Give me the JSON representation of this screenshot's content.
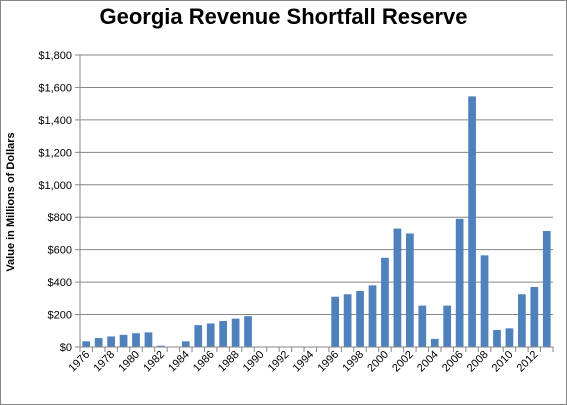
{
  "chart_data": {
    "type": "bar",
    "title": "Georgia Revenue Shortfall Reserve",
    "xlabel": "",
    "ylabel": "Value in Millions of Dollars",
    "ylim": [
      0,
      1800
    ],
    "ytick_step": 200,
    "ytick_labels": [
      "$0",
      "$200",
      "$400",
      "$600",
      "$800",
      "$1,000",
      "$1,200",
      "$1,400",
      "$1,600",
      "$1,800"
    ],
    "categories": [
      "1976",
      "1977",
      "1978",
      "1979",
      "1980",
      "1981",
      "1982",
      "1983",
      "1984",
      "1985",
      "1986",
      "1987",
      "1988",
      "1989",
      "1990",
      "1991",
      "1992",
      "1993",
      "1994",
      "1995",
      "1996",
      "1997",
      "1998",
      "1999",
      "2000",
      "2001",
      "2002",
      "2003",
      "2004",
      "2005",
      "2006",
      "2007",
      "2008",
      "2009",
      "2010",
      "2011",
      "2012",
      "2013"
    ],
    "xtick_labels": [
      "1976",
      "1978",
      "1980",
      "1982",
      "1984",
      "1986",
      "1988",
      "1990",
      "1992",
      "1994",
      "1996",
      "1998",
      "2000",
      "2002",
      "2004",
      "2006",
      "2008",
      "2010",
      "2012"
    ],
    "values": [
      35,
      55,
      65,
      75,
      85,
      90,
      8,
      0,
      35,
      135,
      145,
      160,
      175,
      190,
      0,
      0,
      0,
      0,
      0,
      0,
      310,
      325,
      345,
      380,
      550,
      730,
      700,
      255,
      50,
      255,
      790,
      1545,
      565,
      105,
      115,
      325,
      370,
      715
    ],
    "legend": "none",
    "grid": "horizontal",
    "bar_color": "#4f81bd"
  }
}
